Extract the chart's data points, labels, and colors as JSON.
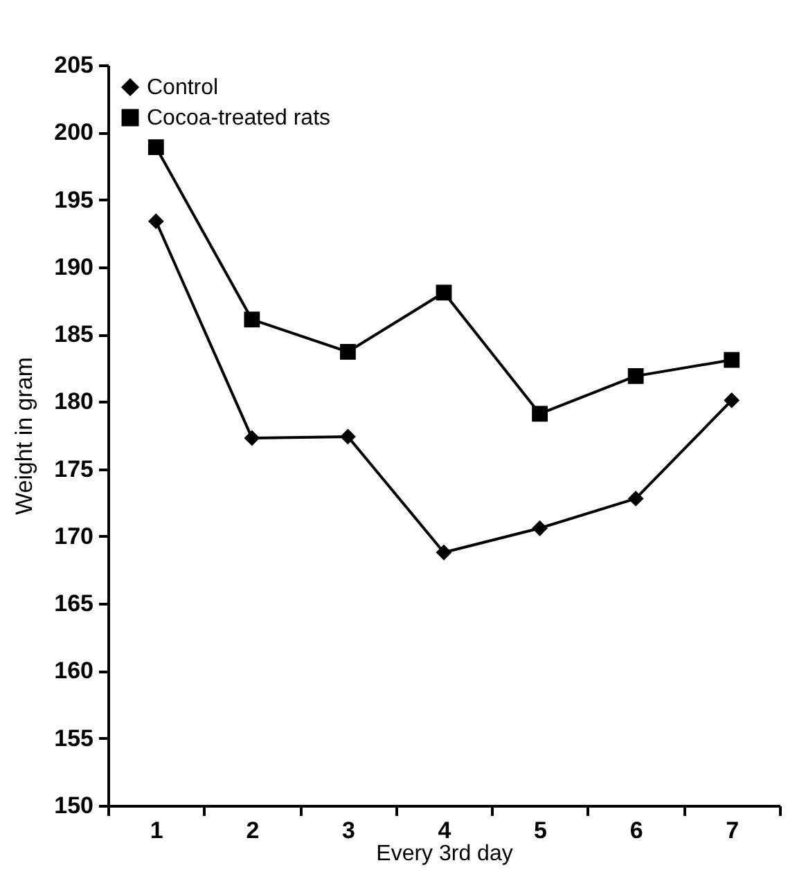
{
  "chart_data": {
    "type": "line",
    "xlabel": "Every 3rd day",
    "ylabel": "Weight in gram",
    "categories": [
      "1",
      "2",
      "3",
      "4",
      "5",
      "6",
      "7"
    ],
    "series": [
      {
        "name": "Control",
        "color": "#000000",
        "marker": "diamond",
        "values": [
          193.4,
          177.3,
          177.4,
          168.8,
          170.6,
          172.8,
          180.1
        ]
      },
      {
        "name": "Cocoa-treated rats",
        "color": "#000000",
        "marker": "square",
        "values": [
          198.9,
          186.1,
          183.7,
          188.1,
          179.1,
          181.9,
          183.1
        ]
      }
    ],
    "ylim": [
      150,
      205
    ],
    "yticks": [
      150,
      155,
      160,
      165,
      170,
      175,
      180,
      185,
      190,
      195,
      200,
      205
    ],
    "grid": false,
    "legend": "top left",
    "line_style": "solid"
  }
}
